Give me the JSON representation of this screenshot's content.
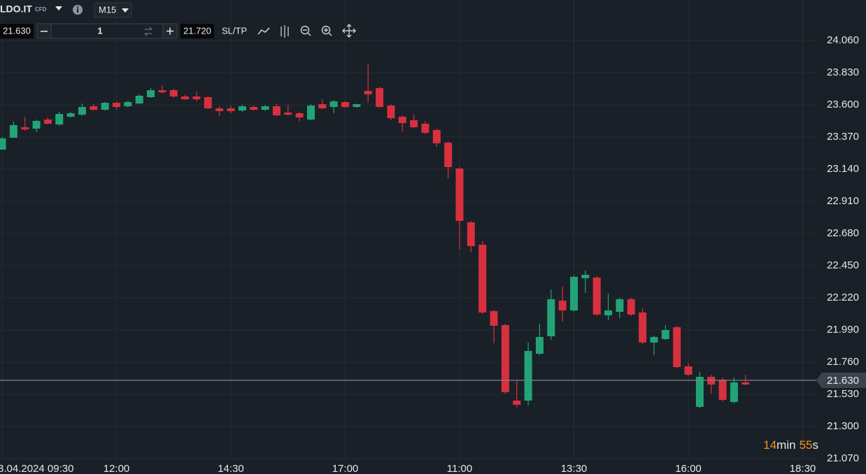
{
  "toolbar": {
    "symbol": "LDO.IT",
    "symbol_tag": "CFD",
    "timeframe": "M15",
    "sell_price": "21.630",
    "quantity": "1",
    "buy_price": "21.720",
    "sltp": "SL/TP"
  },
  "chart_data": {
    "type": "candlestick",
    "categories": [
      "3.04.2024 09:30",
      null,
      null,
      null,
      null,
      null,
      null,
      null,
      null,
      null,
      "12:00",
      null,
      null,
      null,
      null,
      null,
      null,
      null,
      null,
      null,
      "14:30",
      null,
      null,
      null,
      null,
      null,
      null,
      null,
      null,
      null,
      "17:00",
      null,
      null,
      null,
      null,
      null,
      null,
      null,
      null,
      null,
      "11:00",
      null,
      null,
      null,
      null,
      null,
      null,
      null,
      null,
      null,
      "13:30",
      null,
      null,
      null,
      null,
      null,
      null,
      null,
      null,
      null,
      "16:00",
      null,
      null,
      null,
      null,
      null,
      null,
      null,
      null,
      null,
      "18:30",
      null
    ],
    "open": [
      23.28,
      23.365,
      23.44,
      23.43,
      23.495,
      23.46,
      23.515,
      23.53,
      23.59,
      23.565,
      23.615,
      23.59,
      23.61,
      23.655,
      23.705,
      23.705,
      23.66,
      23.66,
      23.655,
      23.575,
      23.575,
      23.56,
      23.585,
      23.565,
      23.59,
      23.545,
      23.54,
      23.495,
      23.605,
      23.585,
      23.62,
      23.585,
      23.7,
      23.72,
      23.595,
      23.515,
      23.49,
      23.465,
      23.42,
      23.33,
      23.145,
      22.76,
      22.6,
      22.125,
      22.025,
      21.485,
      21.485,
      21.82,
      21.945,
      22.2,
      22.13,
      22.36,
      22.365,
      22.095,
      22.12,
      22.21,
      22.115,
      21.9,
      21.925,
      22.01,
      21.73,
      21.44,
      21.655,
      21.635,
      21.475,
      21.615,
      null,
      null,
      null,
      null,
      null,
      null
    ],
    "high": [
      23.37,
      23.48,
      23.515,
      23.495,
      23.51,
      23.55,
      23.55,
      23.61,
      23.61,
      23.62,
      23.625,
      23.63,
      23.675,
      23.72,
      23.74,
      23.715,
      23.67,
      23.695,
      23.66,
      23.59,
      23.595,
      23.6,
      23.595,
      23.6,
      23.61,
      23.6,
      23.55,
      23.605,
      23.64,
      23.635,
      23.625,
      23.61,
      23.895,
      23.73,
      23.605,
      23.525,
      23.53,
      23.485,
      23.43,
      23.34,
      23.155,
      22.77,
      22.625,
      22.135,
      22.035,
      21.63,
      21.9,
      22.035,
      22.28,
      22.3,
      22.38,
      22.415,
      22.375,
      22.25,
      22.22,
      22.22,
      22.145,
      21.95,
      22.025,
      22.02,
      21.755,
      21.69,
      21.67,
      21.65,
      21.65,
      21.67,
      null,
      null,
      null,
      null,
      null,
      null
    ],
    "low": [
      23.28,
      23.365,
      23.415,
      23.405,
      23.46,
      23.45,
      23.51,
      23.52,
      23.56,
      23.56,
      23.565,
      23.58,
      23.605,
      23.65,
      23.68,
      23.65,
      23.635,
      23.625,
      23.57,
      23.52,
      23.54,
      23.55,
      23.56,
      23.555,
      23.52,
      23.52,
      23.48,
      23.49,
      23.57,
      23.54,
      23.58,
      23.58,
      23.615,
      23.58,
      23.49,
      23.405,
      23.43,
      23.39,
      23.3,
      23.075,
      22.565,
      22.545,
      22.105,
      21.895,
      21.535,
      21.435,
      21.45,
      21.81,
      21.92,
      22.05,
      22.12,
      22.255,
      22.09,
      22.06,
      22.075,
      22.09,
      21.89,
      21.81,
      21.92,
      21.715,
      21.66,
      21.43,
      21.535,
      21.48,
      21.465,
      21.595,
      null,
      null,
      null,
      null,
      null,
      null
    ],
    "close": [
      23.36,
      23.455,
      23.425,
      23.485,
      23.465,
      23.535,
      23.54,
      23.585,
      23.565,
      23.615,
      23.585,
      23.62,
      23.665,
      23.705,
      23.69,
      23.66,
      23.64,
      23.64,
      23.575,
      23.555,
      23.555,
      23.59,
      23.565,
      23.59,
      23.525,
      23.53,
      23.51,
      23.595,
      23.575,
      23.625,
      23.585,
      23.605,
      23.675,
      23.585,
      23.505,
      23.47,
      23.44,
      23.4,
      23.325,
      23.155,
      22.77,
      22.59,
      22.115,
      22.02,
      21.545,
      21.455,
      21.84,
      21.94,
      22.21,
      22.13,
      22.37,
      22.385,
      22.1,
      22.13,
      22.21,
      22.1,
      21.9,
      21.94,
      21.99,
      21.725,
      21.67,
      21.655,
      21.6,
      21.49,
      21.615,
      21.6,
      null,
      null,
      null,
      null,
      null,
      null
    ],
    "up_color": "#22a477",
    "down_color": "#d8303f",
    "ylim": [
      20.96,
      24.35
    ],
    "yticks": [
      {
        "value": 24.06,
        "label": "24.060"
      },
      {
        "value": 23.83,
        "label": "23.830"
      },
      {
        "value": 23.6,
        "label": "23.600"
      },
      {
        "value": 23.37,
        "label": "23.370"
      },
      {
        "value": 23.14,
        "label": "23.140"
      },
      {
        "value": 22.91,
        "label": "22.910"
      },
      {
        "value": 22.68,
        "label": "22.680"
      },
      {
        "value": 22.45,
        "label": "22.450"
      },
      {
        "value": 22.22,
        "label": "22.220"
      },
      {
        "value": 21.99,
        "label": "21.990"
      },
      {
        "value": 21.76,
        "label": "21.760"
      },
      {
        "value": 21.53,
        "label": "21.530"
      },
      {
        "value": 21.3,
        "label": "21.300"
      },
      {
        "value": 21.07,
        "label": "21.070"
      }
    ],
    "grid": true,
    "current_price": {
      "value": 21.63,
      "label": "21.630"
    },
    "countdown": {
      "minutes": "14",
      "min_unit": "min",
      "seconds": "55",
      "sec_unit": "s"
    }
  }
}
